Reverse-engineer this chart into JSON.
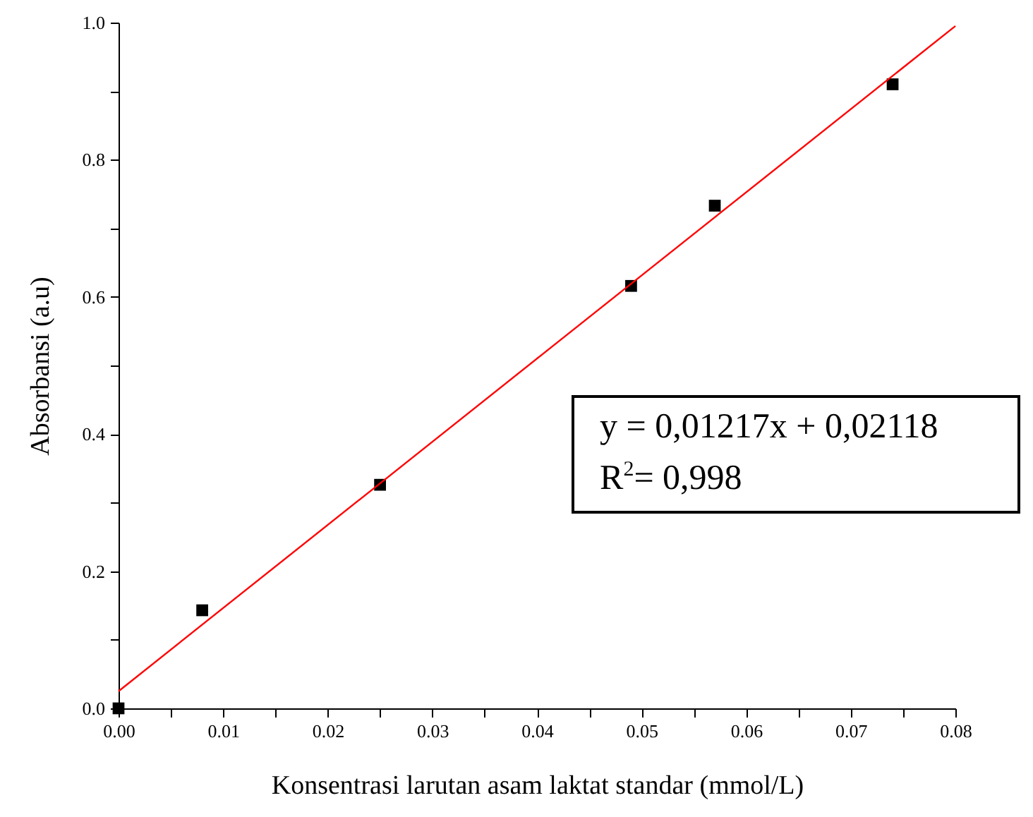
{
  "chart_data": {
    "type": "scatter",
    "xlabel": "Konsentrasi larutan asam laktat standar (mmol/L)",
    "ylabel": "Absorbansi (a.u)",
    "x": [
      0,
      0.008,
      0.025,
      0.049,
      0.057,
      0.074
    ],
    "series": [
      {
        "type": "scatter",
        "color": "#000000",
        "marker": "square",
        "values": [
          0,
          0.143,
          0.326,
          0.616,
          0.733,
          0.91
        ]
      },
      {
        "type": "line",
        "color": "#ff0000",
        "x": [
          0,
          0.08
        ],
        "values": [
          0.025,
          0.995
        ]
      }
    ],
    "xlim": [
      0,
      0.08
    ],
    "ylim": [
      0,
      1
    ],
    "xticks": [
      {
        "value": 0,
        "label": "0.00"
      },
      {
        "value": 0.005,
        "label": null
      },
      {
        "value": 0.01,
        "label": "0.01"
      },
      {
        "value": 0.015,
        "label": null
      },
      {
        "value": 0.02,
        "label": "0.02"
      },
      {
        "value": 0.025,
        "label": null
      },
      {
        "value": 0.03,
        "label": "0.03"
      },
      {
        "value": 0.035,
        "label": null
      },
      {
        "value": 0.04,
        "label": "0.04"
      },
      {
        "value": 0.045,
        "label": null
      },
      {
        "value": 0.05,
        "label": "0.05"
      },
      {
        "value": 0.055,
        "label": null
      },
      {
        "value": 0.06,
        "label": "0.06"
      },
      {
        "value": 0.065,
        "label": null
      },
      {
        "value": 0.07,
        "label": "0.07"
      },
      {
        "value": 0.075,
        "label": null
      },
      {
        "value": 0.08,
        "label": "0.08"
      }
    ],
    "yticks": [
      {
        "value": 0,
        "label": "0.0"
      },
      {
        "value": 0.1,
        "label": null
      },
      {
        "value": 0.2,
        "label": "0.2"
      },
      {
        "value": 0.3,
        "label": null
      },
      {
        "value": 0.4,
        "label": "0.4"
      },
      {
        "value": 0.5,
        "label": null
      },
      {
        "value": 0.6,
        "label": "0.6"
      },
      {
        "value": 0.7,
        "label": null
      },
      {
        "value": 0.8,
        "label": "0.8"
      },
      {
        "value": 0.9,
        "label": null
      },
      {
        "value": 1,
        "label": "1.0"
      }
    ],
    "annotations": [
      "y = 0,01217x + 0,02118",
      "R$^{2}$= 0,998"
    ],
    "grid": false
  }
}
